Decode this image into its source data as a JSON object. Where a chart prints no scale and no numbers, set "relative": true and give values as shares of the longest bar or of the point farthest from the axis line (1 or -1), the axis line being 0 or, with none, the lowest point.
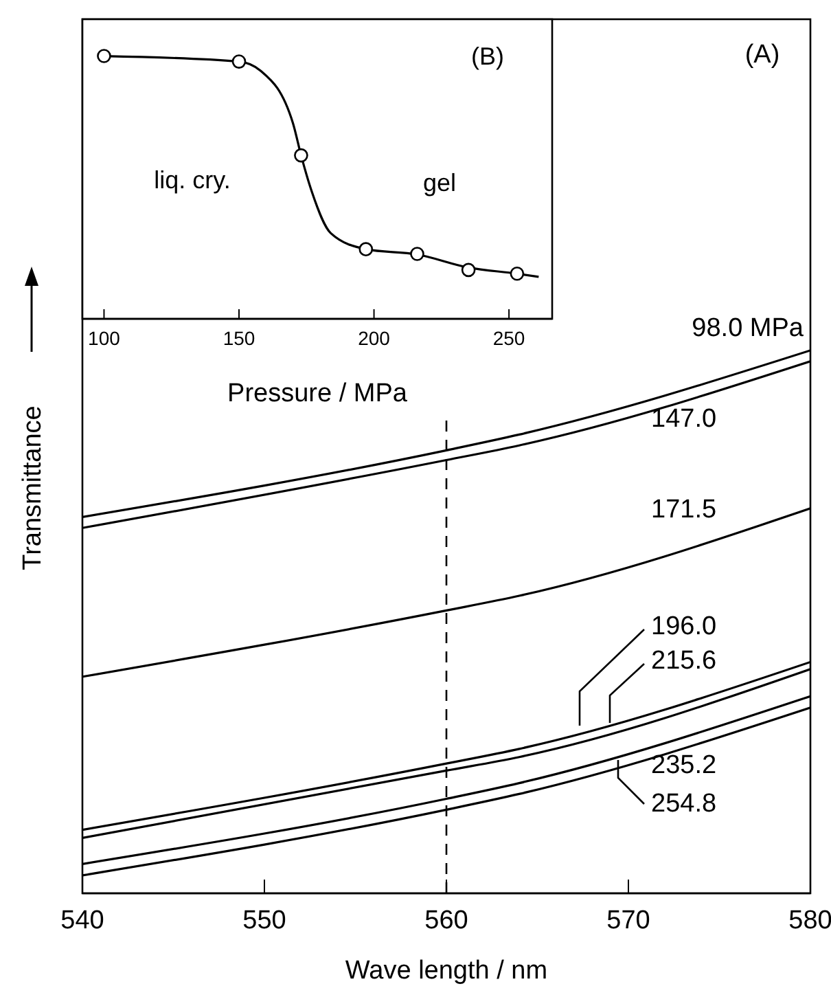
{
  "chart_data": [
    {
      "type": "line",
      "xlabel": "Wave length / nm",
      "ylabel": "Transmittance",
      "annotations": [
        "(A)"
      ],
      "xlim": [
        540,
        580
      ],
      "xticks": [
        540,
        550,
        560,
        570,
        580
      ],
      "relative": true,
      "tick_labels": "x",
      "ref_lines": [
        {
          "axis": "x",
          "value": 560,
          "line_style": "dashed",
          "color": "#000000"
        }
      ],
      "series": [
        {
          "name": "98.0 MPa",
          "color": "#000000",
          "x": [
            540,
            560,
            564,
            580
          ],
          "values": [
            0.693,
            0.816,
            0.845,
            1
          ]
        },
        {
          "name": "147.0",
          "color": "#000000",
          "x": [
            540,
            560,
            564,
            580
          ],
          "values": [
            0.673,
            0.798,
            0.825,
            0.98
          ]
        },
        {
          "name": "171.5",
          "color": "#000000",
          "x": [
            540,
            560,
            564,
            580
          ],
          "values": [
            0.399,
            0.521,
            0.548,
            0.709
          ]
        },
        {
          "name": "196.0",
          "color": "#000000",
          "x": [
            540,
            560,
            564,
            580
          ],
          "values": [
            0.117,
            0.239,
            0.266,
            0.426
          ]
        },
        {
          "name": "215.6",
          "color": "#000000",
          "x": [
            540,
            560,
            564,
            580
          ],
          "values": [
            0.102,
            0.226,
            0.251,
            0.413
          ]
        },
        {
          "name": "235.2",
          "color": "#000000",
          "x": [
            540,
            560,
            564,
            580
          ],
          "values": [
            0.054,
            0.174,
            0.203,
            0.363
          ]
        },
        {
          "name": "254.8",
          "color": "#000000",
          "x": [
            540,
            560,
            564,
            580
          ],
          "values": [
            0.033,
            0.154,
            0.183,
            0.342
          ]
        }
      ]
    },
    {
      "type": "line",
      "xlabel": "Pressure / MPa",
      "annotations": [
        "(B)",
        "liq. cry.",
        "gel"
      ],
      "xlim": [
        92,
        266
      ],
      "xticks": [
        100,
        150,
        200,
        250
      ],
      "relative": true,
      "tick_labels": "x",
      "series": [
        {
          "type": "scatter",
          "color": "#000000",
          "marker": "circle",
          "x": [
            100,
            150,
            173,
            197,
            216,
            235,
            253
          ],
          "values": [
            1,
            0.979,
            0.622,
            0.265,
            0.247,
            0.186,
            0.172
          ]
        },
        {
          "color": "#000000",
          "marker": "none",
          "x": [
            100,
            150,
            158,
            170,
            173,
            177,
            184,
            197,
            216,
            235,
            253,
            261
          ],
          "values": [
            1,
            0.979,
            0.944,
            0.744,
            0.622,
            0.483,
            0.326,
            0.265,
            0.245,
            0.195,
            0.172,
            0.16
          ]
        }
      ]
    }
  ]
}
